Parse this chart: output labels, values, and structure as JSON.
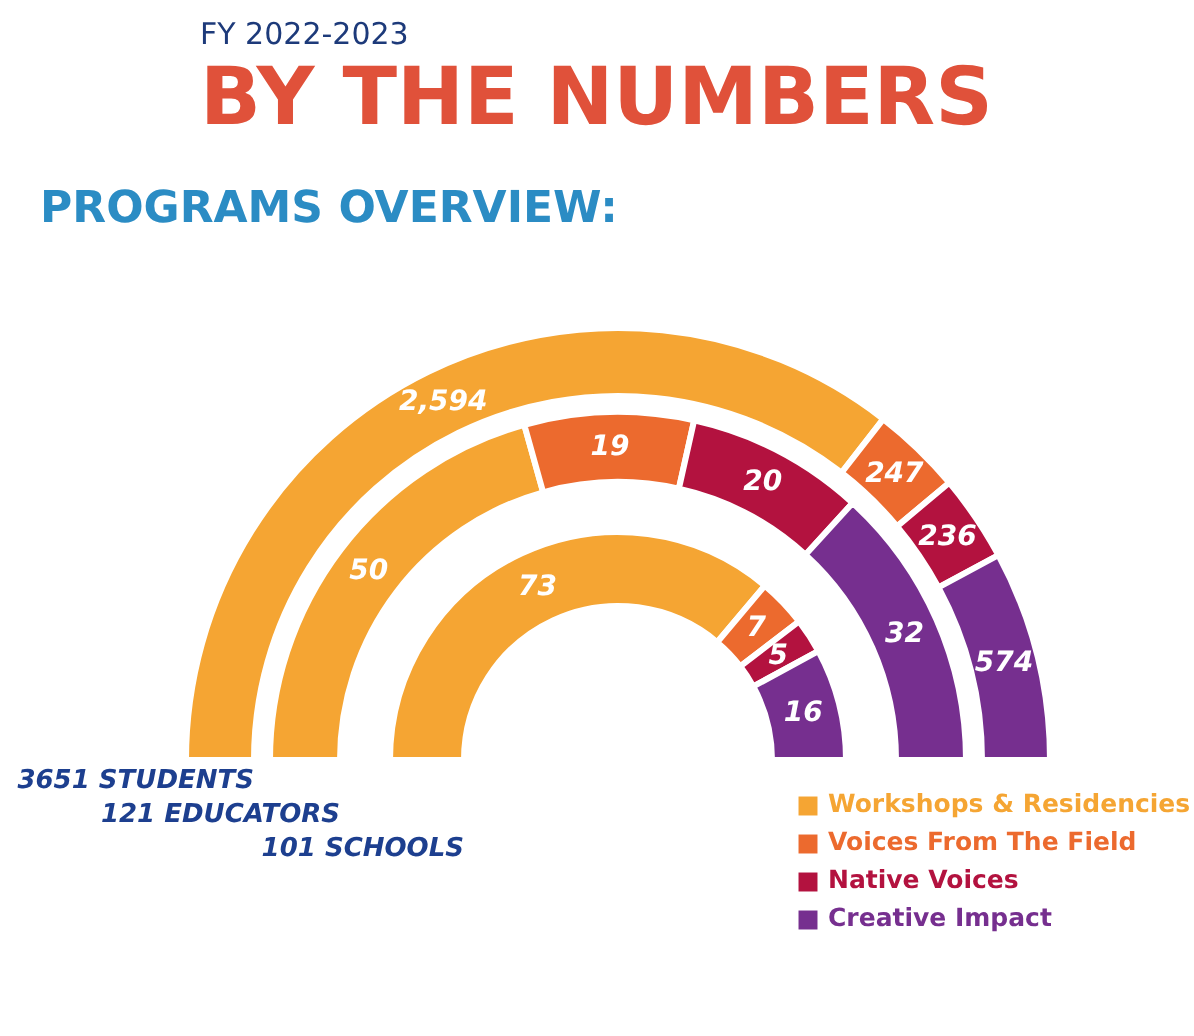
{
  "chart_data": {
    "type": "donut",
    "annotations": [
      "FY 2022-2023"
    ],
    "title": "BY THE NUMBERS",
    "subtitle": "PROGRAMS OVERVIEW:",
    "categories": [
      "Workshops & Residencies",
      "Voices From The Field",
      "Native Voices",
      "Creative Impact"
    ],
    "colors": [
      "#f5a533",
      "#ec6a2e",
      "#b3123f",
      "#762f8f"
    ],
    "series": [
      {
        "name": "3651 STUDENTS",
        "values": [
          2594,
          247,
          236,
          574
        ],
        "value_labels": [
          "2,594",
          "247",
          "236",
          "574"
        ]
      },
      {
        "name": "121 EDUCATORS",
        "values": [
          50,
          19,
          20,
          32
        ],
        "value_labels": [
          "50",
          "19",
          "20",
          "32"
        ]
      },
      {
        "name": "101 SCHOOLS",
        "values": [
          73,
          7,
          5,
          16
        ],
        "value_labels": [
          "73",
          "7",
          "5",
          "16"
        ]
      }
    ],
    "data_labels": true,
    "legend": "bottom right"
  }
}
